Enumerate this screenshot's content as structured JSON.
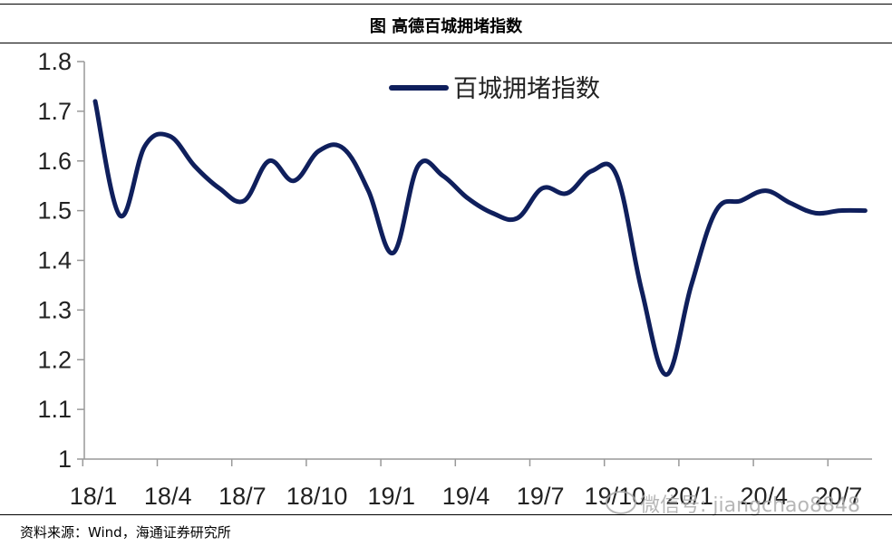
{
  "header": {
    "title": "图  高德百城拥堵指数"
  },
  "footer": {
    "source": "资料来源：Wind，海通证券研究所"
  },
  "watermark": {
    "text": "微信号: jiangchao8848",
    "icon": "wechat-icon"
  },
  "colors": {
    "line": "#0f1f5c",
    "axis": "#999999",
    "text": "#222222"
  },
  "chart_data": {
    "type": "line",
    "title": "",
    "xlabel": "",
    "ylabel": "",
    "ylim": [
      1,
      1.8
    ],
    "yticks": [
      "1",
      "1.1",
      "1.2",
      "1.3",
      "1.4",
      "1.5",
      "1.6",
      "1.7",
      "1.8"
    ],
    "xticks": [
      "18/1",
      "18/4",
      "18/7",
      "18/10",
      "19/1",
      "19/4",
      "19/7",
      "19/10",
      "20/1",
      "20/4",
      "20/7"
    ],
    "grid": false,
    "legend": "top-center",
    "series": [
      {
        "name": "百城拥堵指数",
        "x": [
          "18/1",
          "18/2",
          "18/3",
          "18/4",
          "18/5",
          "18/6",
          "18/7",
          "18/8",
          "18/9",
          "18/10",
          "18/11",
          "18/12",
          "19/1",
          "19/2",
          "19/3",
          "19/4",
          "19/5",
          "19/6",
          "19/7",
          "19/8",
          "19/9",
          "19/10",
          "19/11",
          "19/12",
          "20/1",
          "20/2",
          "20/3",
          "20/4",
          "20/5",
          "20/6",
          "20/7",
          "20/8"
        ],
        "values": [
          1.72,
          1.49,
          1.63,
          1.65,
          1.59,
          1.545,
          1.52,
          1.6,
          1.56,
          1.62,
          1.625,
          1.54,
          1.415,
          1.59,
          1.57,
          1.525,
          1.495,
          1.485,
          1.545,
          1.535,
          1.58,
          1.57,
          1.34,
          1.17,
          1.35,
          1.5,
          1.52,
          1.54,
          1.515,
          1.495,
          1.5,
          1.5
        ]
      }
    ]
  }
}
